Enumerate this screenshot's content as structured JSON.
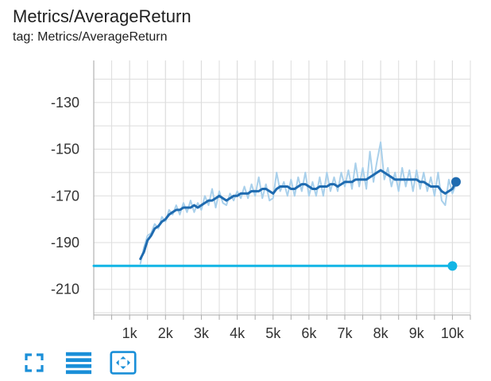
{
  "header": {
    "title": "Metrics/AverageReturn",
    "tag_line": "tag: Metrics/AverageReturn"
  },
  "toolbar": {
    "buttons": [
      {
        "name": "fullscreen-button",
        "icon": "fullscreen-icon"
      },
      {
        "name": "toggle-log-scale-button",
        "icon": "lines-icon"
      },
      {
        "name": "fit-domain-button",
        "icon": "fit-to-data-icon"
      }
    ]
  },
  "chart_data": {
    "type": "line",
    "title": "Metrics/AverageReturn",
    "xlabel": "",
    "ylabel": "",
    "xlim": [
      0,
      10500
    ],
    "ylim": [
      -221,
      -112
    ],
    "x_ticks": [
      1000,
      2000,
      3000,
      4000,
      5000,
      6000,
      7000,
      8000,
      9000,
      10000
    ],
    "x_tick_labels": [
      "1k",
      "2k",
      "3k",
      "4k",
      "5k",
      "6k",
      "7k",
      "8k",
      "9k",
      "10k"
    ],
    "y_ticks": [
      -130,
      -150,
      -170,
      -190,
      -210
    ],
    "y_tick_labels": [
      "-130",
      "-150",
      "-170",
      "-190",
      "-210"
    ],
    "grid": true,
    "legend": "none",
    "colors": {
      "series_main": "#1f6bb0",
      "series_raw": "#a9d0eb",
      "series_baseline": "#12b5e5",
      "grid": "#dddddd",
      "axis": "#aaaaaa",
      "toolbar_icon": "#1a8fd8"
    },
    "series": [
      {
        "style": "smoothed",
        "color": "#1f6bb0",
        "x": [
          1300,
          1400,
          1500,
          1600,
          1700,
          1800,
          1900,
          2000,
          2100,
          2200,
          2300,
          2400,
          2500,
          2600,
          2700,
          2800,
          2900,
          3000,
          3100,
          3200,
          3300,
          3400,
          3500,
          3600,
          3700,
          3800,
          3900,
          4000,
          4100,
          4200,
          4300,
          4400,
          4500,
          4600,
          4700,
          4800,
          4900,
          5000,
          5100,
          5200,
          5300,
          5400,
          5500,
          5600,
          5700,
          5800,
          5900,
          6000,
          6100,
          6200,
          6300,
          6400,
          6500,
          6600,
          6700,
          6800,
          6900,
          7000,
          7100,
          7200,
          7300,
          7400,
          7500,
          7600,
          7700,
          7800,
          7900,
          8000,
          8100,
          8200,
          8300,
          8400,
          8500,
          8600,
          8700,
          8800,
          8900,
          9000,
          9100,
          9200,
          9300,
          9400,
          9500,
          9600,
          9700,
          9800,
          9900,
          10000,
          10100
        ],
        "y": [
          -197,
          -194,
          -189,
          -187,
          -184,
          -183,
          -181,
          -180,
          -178,
          -177,
          -176,
          -176,
          -175,
          -175,
          -175,
          -174,
          -175,
          -174,
          -173,
          -172,
          -172,
          -171,
          -170,
          -171,
          -172,
          -171,
          -170,
          -170,
          -169,
          -169,
          -169,
          -168,
          -168,
          -168,
          -167,
          -167,
          -168,
          -169,
          -167,
          -166,
          -166,
          -166,
          -167,
          -167,
          -166,
          -165,
          -165,
          -166,
          -167,
          -167,
          -166,
          -166,
          -166,
          -165,
          -165,
          -166,
          -165,
          -164,
          -164,
          -164,
          -163,
          -163,
          -163,
          -163,
          -162,
          -161,
          -160,
          -159,
          -160,
          -161,
          -162,
          -163,
          -163,
          -163,
          -163,
          -163,
          -163,
          -163,
          -164,
          -164,
          -165,
          -166,
          -166,
          -166,
          -168,
          -169,
          -168,
          -167,
          -164
        ],
        "end_value": -164
      },
      {
        "style": "raw",
        "color": "#a9d0eb",
        "x": [
          1300,
          1400,
          1500,
          1600,
          1700,
          1800,
          1900,
          2000,
          2100,
          2200,
          2300,
          2400,
          2500,
          2600,
          2700,
          2800,
          2900,
          3000,
          3100,
          3200,
          3300,
          3400,
          3500,
          3600,
          3700,
          3800,
          3900,
          4000,
          4100,
          4200,
          4300,
          4400,
          4500,
          4600,
          4700,
          4800,
          4900,
          5000,
          5100,
          5200,
          5300,
          5400,
          5500,
          5600,
          5700,
          5800,
          5900,
          6000,
          6100,
          6200,
          6300,
          6400,
          6500,
          6600,
          6700,
          6800,
          6900,
          7000,
          7100,
          7200,
          7300,
          7400,
          7500,
          7600,
          7700,
          7800,
          7900,
          8000,
          8100,
          8200,
          8300,
          8400,
          8500,
          8600,
          8700,
          8800,
          8900,
          9000,
          9100,
          9200,
          9300,
          9400,
          9500,
          9600,
          9700,
          9800,
          9900,
          10000,
          10100
        ],
        "y": [
          -199,
          -192,
          -187,
          -186,
          -182,
          -184,
          -179,
          -181,
          -176,
          -178,
          -174,
          -178,
          -173,
          -177,
          -172,
          -177,
          -173,
          -176,
          -170,
          -174,
          -167,
          -175,
          -168,
          -173,
          -174,
          -169,
          -172,
          -168,
          -171,
          -166,
          -171,
          -165,
          -170,
          -162,
          -171,
          -165,
          -172,
          -171,
          -160,
          -168,
          -164,
          -170,
          -163,
          -170,
          -162,
          -168,
          -160,
          -170,
          -164,
          -170,
          -162,
          -170,
          -160,
          -168,
          -162,
          -168,
          -160,
          -166,
          -159,
          -167,
          -156,
          -166,
          -158,
          -167,
          -151,
          -164,
          -155,
          -147,
          -163,
          -158,
          -166,
          -160,
          -168,
          -158,
          -166,
          -159,
          -168,
          -159,
          -167,
          -160,
          -168,
          -162,
          -170,
          -160,
          -172,
          -174,
          -163,
          -169,
          -165
        ],
        "end_value": -165
      },
      {
        "style": "baseline",
        "color": "#12b5e5",
        "x": [
          0,
          10000
        ],
        "y": [
          -200,
          -200
        ],
        "end_value": -200
      }
    ]
  }
}
